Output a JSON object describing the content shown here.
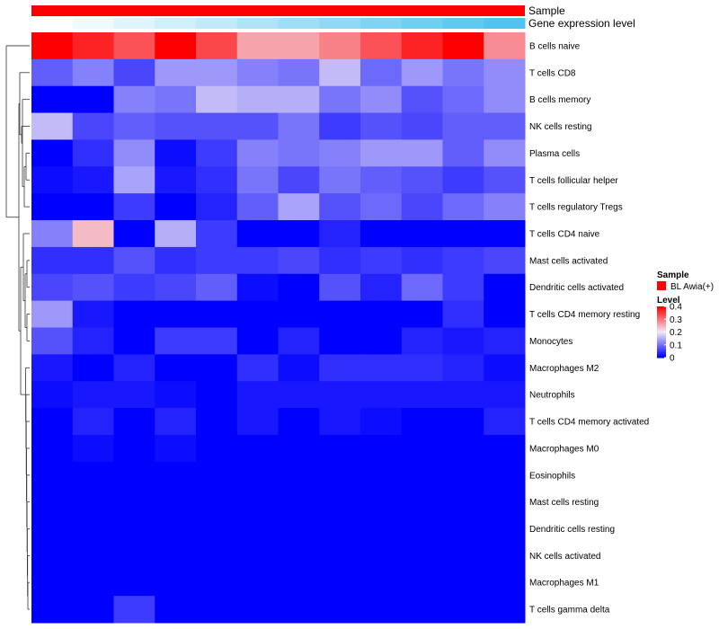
{
  "chart_data": {
    "type": "heatmap",
    "annotations": [
      {
        "label": "Sample",
        "color": "#ff0000"
      },
      {
        "label": "Gene expression level",
        "gradient": [
          "#ffffff",
          "#4fc4ee"
        ]
      }
    ],
    "rows": [
      "B cells naive",
      "T cells CD8",
      "B cells memory",
      "NK cells resting",
      "Plasma cells",
      "T cells follicular helper",
      "T cells regulatory  Tregs",
      "T cells CD4 naive",
      "Mast cells activated",
      "Dendritic cells activated",
      "T cells CD4 memory resting",
      "Monocytes",
      "Macrophages M2",
      "Neutrophils",
      "T cells CD4 memory activated",
      "Macrophages M0",
      "Eosinophils",
      "Mast cells resting",
      "Dendritic cells resting",
      "NK cells activated",
      "Macrophages M1",
      "T cells gamma delta"
    ],
    "n_samples": 12,
    "values": [
      [
        0.4,
        0.37,
        0.33,
        0.4,
        0.34,
        0.26,
        0.26,
        0.29,
        0.33,
        0.37,
        0.4,
        0.28
      ],
      [
        0.08,
        0.11,
        0.06,
        0.13,
        0.13,
        0.11,
        0.1,
        0.16,
        0.09,
        0.13,
        0.1,
        0.12
      ],
      [
        0.0,
        0.0,
        0.11,
        0.1,
        0.16,
        0.15,
        0.15,
        0.1,
        0.12,
        0.07,
        0.09,
        0.12
      ],
      [
        0.16,
        0.06,
        0.08,
        0.07,
        0.07,
        0.07,
        0.1,
        0.05,
        0.07,
        0.06,
        0.08,
        0.08
      ],
      [
        0.0,
        0.04,
        0.12,
        0.01,
        0.05,
        0.11,
        0.1,
        0.11,
        0.13,
        0.13,
        0.08,
        0.12
      ],
      [
        0.01,
        0.02,
        0.14,
        0.02,
        0.04,
        0.1,
        0.06,
        0.1,
        0.08,
        0.07,
        0.05,
        0.07
      ],
      [
        0.0,
        0.0,
        0.05,
        0.0,
        0.03,
        0.08,
        0.14,
        0.07,
        0.09,
        0.06,
        0.09,
        0.11
      ],
      [
        0.11,
        0.24,
        0.0,
        0.15,
        0.05,
        0.0,
        0.0,
        0.03,
        0.0,
        0.0,
        0.0,
        0.0
      ],
      [
        0.04,
        0.04,
        0.07,
        0.04,
        0.05,
        0.05,
        0.06,
        0.04,
        0.05,
        0.04,
        0.05,
        0.06
      ],
      [
        0.06,
        0.07,
        0.05,
        0.06,
        0.08,
        0.01,
        0.0,
        0.07,
        0.03,
        0.09,
        0.05,
        0.0
      ],
      [
        0.13,
        0.02,
        0.0,
        0.0,
        0.0,
        0.0,
        0.0,
        0.0,
        0.0,
        0.0,
        0.04,
        0.0
      ],
      [
        0.07,
        0.03,
        0.0,
        0.05,
        0.05,
        0.0,
        0.03,
        0.0,
        0.0,
        0.03,
        0.02,
        0.03
      ],
      [
        0.02,
        0.0,
        0.03,
        0.0,
        0.0,
        0.04,
        0.01,
        0.04,
        0.04,
        0.04,
        0.03,
        0.01
      ],
      [
        0.01,
        0.02,
        0.02,
        0.01,
        0.0,
        0.02,
        0.02,
        0.02,
        0.02,
        0.02,
        0.02,
        0.02
      ],
      [
        0.0,
        0.03,
        0.0,
        0.03,
        0.0,
        0.02,
        0.0,
        0.02,
        0.01,
        0.0,
        0.0,
        0.03
      ],
      [
        0.0,
        0.01,
        0.0,
        0.01,
        0.0,
        0.0,
        0.0,
        0.0,
        0.0,
        0.0,
        0.0,
        0.0
      ],
      [
        0.0,
        0.0,
        0.0,
        0.0,
        0.0,
        0.0,
        0.0,
        0.0,
        0.0,
        0.0,
        0.0,
        0.0
      ],
      [
        0.0,
        0.0,
        0.0,
        0.0,
        0.0,
        0.0,
        0.0,
        0.0,
        0.0,
        0.0,
        0.0,
        0.0
      ],
      [
        0.0,
        0.0,
        0.0,
        0.0,
        0.0,
        0.0,
        0.0,
        0.0,
        0.0,
        0.0,
        0.0,
        0.0
      ],
      [
        0.0,
        0.0,
        0.0,
        0.0,
        0.0,
        0.0,
        0.0,
        0.0,
        0.0,
        0.0,
        0.0,
        0.0
      ],
      [
        0.0,
        0.0,
        0.0,
        0.0,
        0.0,
        0.0,
        0.0,
        0.0,
        0.0,
        0.0,
        0.0,
        0.0
      ],
      [
        0.0,
        0.0,
        0.05,
        0.0,
        0.0,
        0.0,
        0.0,
        0.0,
        0.0,
        0.0,
        0.0,
        0.0
      ]
    ],
    "color_scale": {
      "min": 0,
      "max": 0.4,
      "stops": [
        {
          "value": 0.0,
          "color": "#0000ff"
        },
        {
          "value": 0.2,
          "color": "#f2eaf6"
        },
        {
          "value": 0.4,
          "color": "#ff0000"
        }
      ]
    },
    "legend": {
      "sample_title": "Sample",
      "sample_item": "BL Awia(+)",
      "sample_color": "#ff0000",
      "level_title": "Level",
      "level_ticks": [
        "0.4",
        "0.3",
        "0.2",
        "0.1",
        "0"
      ],
      "level_tick_values": [
        0.4,
        0.3,
        0.2,
        0.1,
        0
      ]
    }
  }
}
